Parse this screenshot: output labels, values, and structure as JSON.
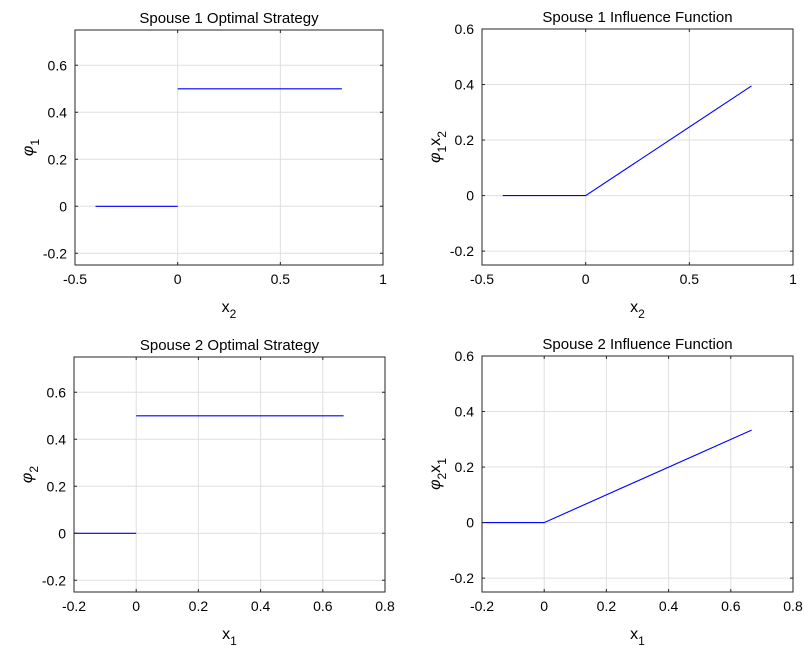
{
  "chart_data": [
    {
      "id": "s1-strategy",
      "type": "line",
      "title": "Spouse 1 Optimal Strategy",
      "xlabel": {
        "base": "x",
        "sub": "2"
      },
      "ylabel": {
        "base": "φ",
        "sub": "1",
        "rest": "",
        "rest_sub": ""
      },
      "xlim": [
        -0.5,
        1
      ],
      "ylim": [
        -0.25,
        0.75
      ],
      "xticks": [
        -0.5,
        0,
        0.5,
        1
      ],
      "xtick_labels": [
        "-0.5",
        "0",
        "0.5",
        "1"
      ],
      "yticks": [
        -0.2,
        0,
        0.2,
        0.4,
        0.6
      ],
      "ytick_labels": [
        "-0.2",
        "0",
        "0.2",
        "0.4",
        "0.6"
      ],
      "grid": true,
      "series": [
        {
          "color": "#0000ff",
          "segments": [
            [
              [
                -0.4,
                0
              ],
              [
                0,
                0
              ]
            ],
            [
              [
                0,
                0.5
              ],
              [
                0.8,
                0.5
              ]
            ]
          ]
        }
      ]
    },
    {
      "id": "s1-influence",
      "type": "line",
      "title": "Spouse 1 Influence Function",
      "xlabel": {
        "base": "x",
        "sub": "2"
      },
      "ylabel": {
        "base": "φ",
        "sub": "1",
        "rest": "x",
        "rest_sub": "2"
      },
      "xlim": [
        -0.5,
        1
      ],
      "ylim": [
        -0.25,
        0.6
      ],
      "xticks": [
        -0.5,
        0,
        0.5,
        1
      ],
      "xtick_labels": [
        "-0.5",
        "0",
        "0.5",
        "1"
      ],
      "yticks": [
        -0.2,
        0,
        0.2,
        0.4,
        0.6
      ],
      "ytick_labels": [
        "-0.2",
        "0",
        "0.2",
        "0.4",
        "0.6"
      ],
      "grid": true,
      "series": [
        {
          "color": "#0000ff",
          "segments": [
            [
              [
                -0.4,
                0
              ],
              [
                0,
                0
              ],
              [
                0.8,
                0.395
              ]
            ]
          ]
        }
      ]
    },
    {
      "id": "s2-strategy",
      "type": "line",
      "title": "Spouse 2 Optimal Strategy",
      "xlabel": {
        "base": "x",
        "sub": "1"
      },
      "ylabel": {
        "base": "φ",
        "sub": "2",
        "rest": "",
        "rest_sub": ""
      },
      "xlim": [
        -0.2,
        0.8
      ],
      "ylim": [
        -0.25,
        0.75
      ],
      "xticks": [
        -0.2,
        0,
        0.2,
        0.4,
        0.6,
        0.8
      ],
      "xtick_labels": [
        "-0.2",
        "0",
        "0.2",
        "0.4",
        "0.6",
        "0.8"
      ],
      "yticks": [
        -0.2,
        0,
        0.2,
        0.4,
        0.6
      ],
      "ytick_labels": [
        "-0.2",
        "0",
        "0.2",
        "0.4",
        "0.6"
      ],
      "grid": true,
      "series": [
        {
          "color": "#0000ff",
          "segments": [
            [
              [
                -0.2,
                0
              ],
              [
                0,
                0
              ]
            ],
            [
              [
                0,
                0.5
              ],
              [
                0.667,
                0.5
              ]
            ]
          ]
        }
      ]
    },
    {
      "id": "s2-influence",
      "type": "line",
      "title": "Spouse 2 Influence Function",
      "xlabel": {
        "base": "x",
        "sub": "1"
      },
      "ylabel": {
        "base": "φ",
        "sub": "2",
        "rest": "x",
        "rest_sub": "1"
      },
      "xlim": [
        -0.2,
        0.8
      ],
      "ylim": [
        -0.25,
        0.6
      ],
      "xticks": [
        -0.2,
        0,
        0.2,
        0.4,
        0.6,
        0.8
      ],
      "xtick_labels": [
        "-0.2",
        "0",
        "0.2",
        "0.4",
        "0.6",
        "0.8"
      ],
      "yticks": [
        -0.2,
        0,
        0.2,
        0.4,
        0.6
      ],
      "ytick_labels": [
        "-0.2",
        "0",
        "0.2",
        "0.4",
        "0.6"
      ],
      "grid": true,
      "series": [
        {
          "color": "#0000ff",
          "segments": [
            [
              [
                -0.2,
                0
              ],
              [
                0,
                0
              ],
              [
                0.667,
                0.333
              ]
            ]
          ]
        }
      ]
    }
  ]
}
